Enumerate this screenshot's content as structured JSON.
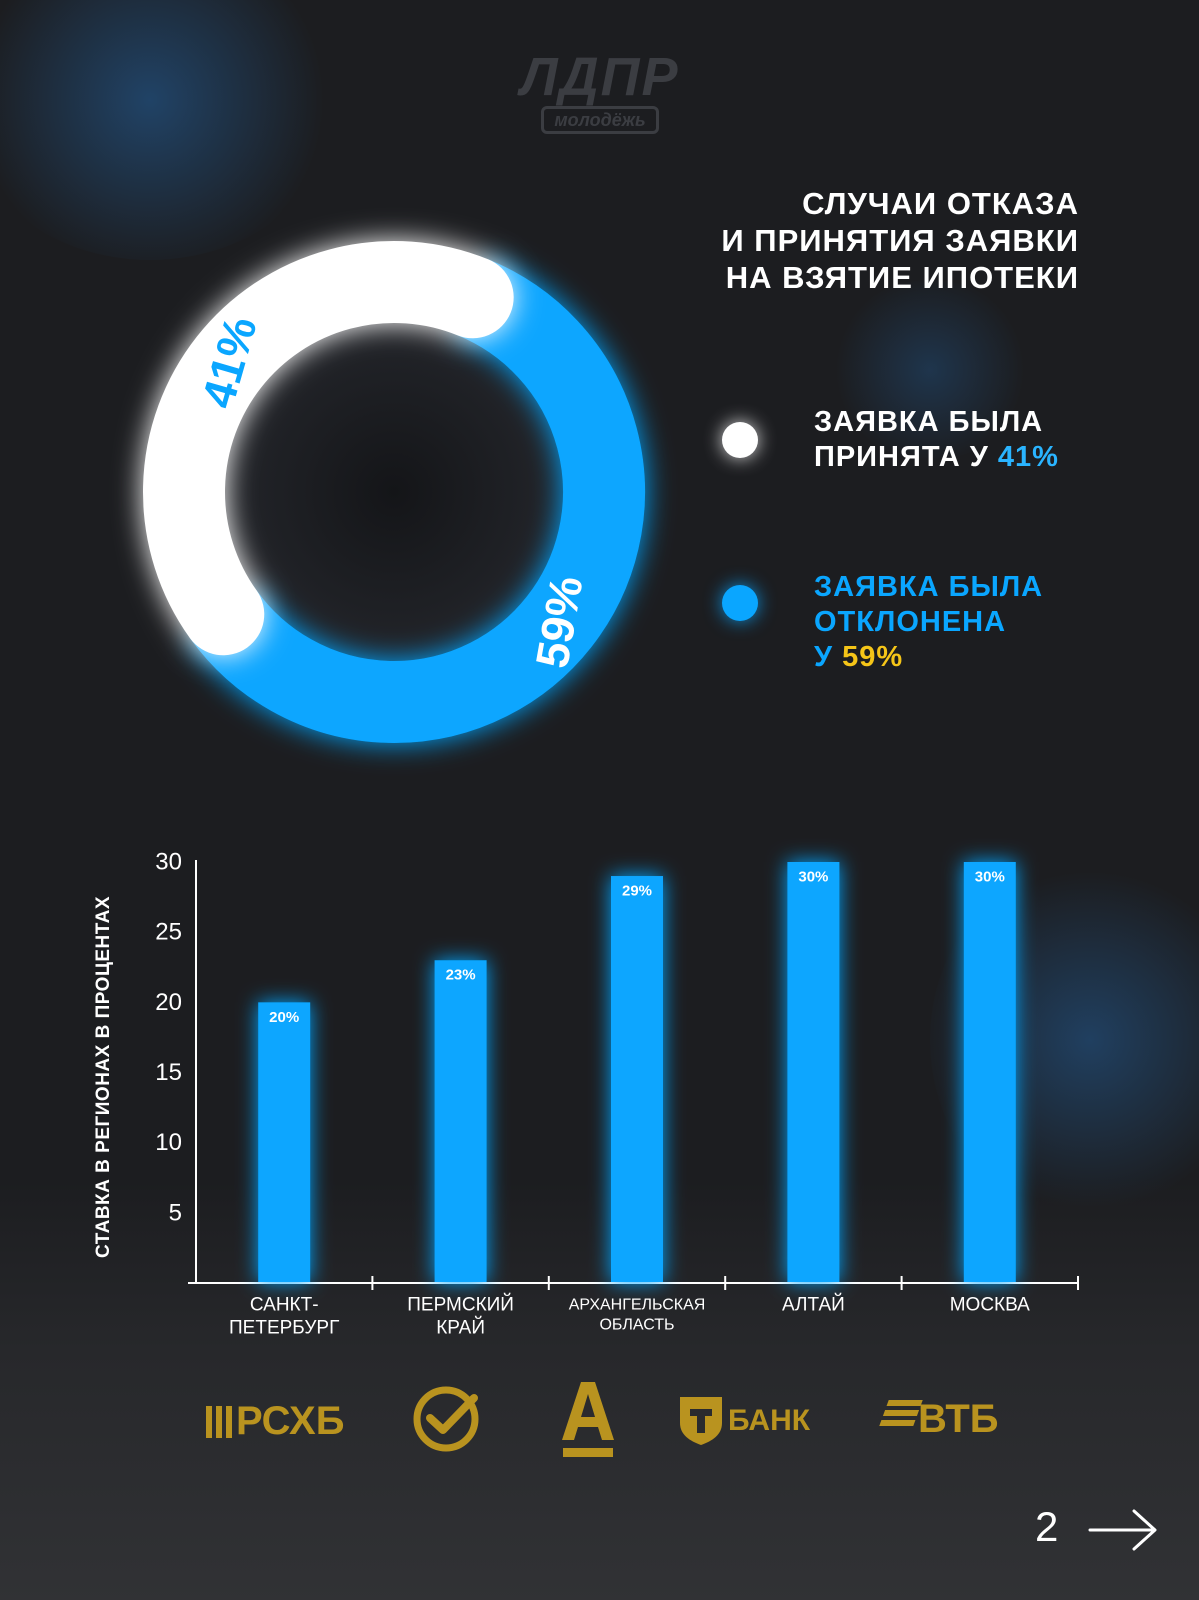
{
  "logo": {
    "main": "ЛДПР",
    "sub": "молодёжь"
  },
  "title": {
    "lines": [
      "СЛУЧАИ ОТКАЗА",
      "И ПРИНЯТИЯ ЗАЯВКИ",
      "НА ВЗЯТИЕ ИПОТЕКИ"
    ]
  },
  "legend": {
    "accepted": {
      "line1": "ЗАЯВКА БЫЛА",
      "line2_prefix": "ПРИНЯТА  У ",
      "value": "41%"
    },
    "rejected": {
      "line1": "ЗАЯВКА БЫЛА",
      "line2": "ОТКЛОНЕНА",
      "line3_prefix": "У ",
      "value": "59%"
    }
  },
  "colors": {
    "accent_blue": "#0aa6ff",
    "accent_yellow": "#f5c518",
    "white": "#ffffff",
    "gold": "#b9931f",
    "background": "#1c1d20"
  },
  "chart_data": [
    {
      "type": "pie",
      "title": "СЛУЧАИ ОТКАЗА И ПРИНЯТИЯ ЗАЯВКИ НА ВЗЯТИЕ ИПОТЕКИ",
      "slices": [
        {
          "label": "ЗАЯВКА БЫЛА ПРИНЯТА",
          "value": 41,
          "text": "41%",
          "color": "#ffffff"
        },
        {
          "label": "ЗАЯВКА БЫЛА ОТКЛОНЕНА",
          "value": 59,
          "text": "59%",
          "color": "#0aa6ff"
        }
      ],
      "donut": true
    },
    {
      "type": "bar",
      "ylabel": "СТАВКА В РЕГИОНАХ В ПРОЦЕНТАХ",
      "xlabel": "",
      "ylim": [
        0,
        30
      ],
      "yticks": [
        5,
        10,
        15,
        20,
        25,
        30
      ],
      "categories": [
        {
          "line1": "САНКТ-",
          "line2": "ПЕТЕРБУРГ"
        },
        {
          "line1": "ПЕРМСКИЙ",
          "line2": "КРАЙ"
        },
        {
          "line1": "АРХАНГЕЛЬСКАЯ",
          "line2": "ОБЛАСТЬ"
        },
        {
          "line1": "АЛТАЙ",
          "line2": ""
        },
        {
          "line1": "МОСКВА",
          "line2": ""
        }
      ],
      "values": [
        20,
        23,
        29,
        30,
        30
      ],
      "data_labels": [
        "20%",
        "23%",
        "29%",
        "30%",
        "30%"
      ],
      "grid": false
    }
  ],
  "banks": [
    "РСХБ",
    "Сбер",
    "Альфа-Банк",
    "Т-Банк",
    "ВТБ"
  ],
  "bank_labels": {
    "rshb": "РСХБ",
    "tbank": "БАНК",
    "vtb": "ВТБ"
  },
  "footer": {
    "page_number": "2"
  },
  "icons": {
    "next": "arrow-right-icon",
    "sber": "sber-check-icon",
    "alfa": "alfa-a-icon",
    "tbank": "tbank-shield-icon"
  }
}
